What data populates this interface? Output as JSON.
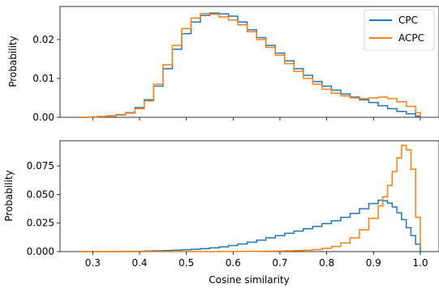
{
  "colors": {
    "series_1": "#1f77b4",
    "series_2": "#ff7f0e"
  },
  "chart_data": [
    {
      "type": "line",
      "drawstyle": "steps",
      "title": "",
      "xlabel": "",
      "ylabel": "Probability",
      "xlim": [
        0.23,
        1.04
      ],
      "ylim": [
        0,
        0.0285
      ],
      "xticks": [
        0.3,
        0.4,
        0.5,
        0.6,
        0.7,
        0.8,
        0.9,
        1.0
      ],
      "yticks": [
        0.0,
        0.01,
        0.02
      ],
      "ytick_labels": [
        "0.00",
        "0.01",
        "0.02"
      ],
      "xtick_labels_visible": false,
      "grid": false,
      "legend": {
        "placement": "top-right",
        "entries": [
          "CPC",
          "ACPC"
        ]
      },
      "x": [
        0.27,
        0.29,
        0.31,
        0.33,
        0.35,
        0.37,
        0.39,
        0.41,
        0.43,
        0.45,
        0.47,
        0.49,
        0.51,
        0.53,
        0.55,
        0.57,
        0.59,
        0.61,
        0.63,
        0.65,
        0.67,
        0.69,
        0.71,
        0.73,
        0.75,
        0.77,
        0.79,
        0.81,
        0.83,
        0.85,
        0.87,
        0.89,
        0.91,
        0.93,
        0.95,
        0.97,
        0.99,
        1.0
      ],
      "series": [
        {
          "name": "CPC",
          "values": [
            0.0,
            0.0001,
            0.0002,
            0.0004,
            0.0007,
            0.0012,
            0.0025,
            0.0045,
            0.008,
            0.0125,
            0.0175,
            0.0215,
            0.0245,
            0.0262,
            0.0268,
            0.0266,
            0.026,
            0.0245,
            0.0225,
            0.0205,
            0.0185,
            0.0165,
            0.0145,
            0.0125,
            0.0108,
            0.0092,
            0.008,
            0.007,
            0.006,
            0.0052,
            0.0045,
            0.0038,
            0.003,
            0.0022,
            0.0015,
            0.0009,
            0.0003,
            0.0
          ]
        },
        {
          "name": "ACPC",
          "values": [
            0.0,
            0.0001,
            0.0002,
            0.0003,
            0.0006,
            0.0011,
            0.0022,
            0.0042,
            0.0085,
            0.0135,
            0.0185,
            0.0228,
            0.0255,
            0.0267,
            0.0265,
            0.0258,
            0.025,
            0.0238,
            0.022,
            0.02,
            0.018,
            0.016,
            0.0138,
            0.0118,
            0.01,
            0.0085,
            0.0072,
            0.0062,
            0.0055,
            0.005,
            0.0048,
            0.005,
            0.0052,
            0.0048,
            0.004,
            0.0028,
            0.0012,
            0.0
          ]
        }
      ]
    },
    {
      "type": "line",
      "drawstyle": "steps",
      "title": "",
      "xlabel": "Cosine similarity",
      "ylabel": "Probability",
      "xlim": [
        0.23,
        1.04
      ],
      "ylim": [
        0,
        0.097
      ],
      "xticks": [
        0.3,
        0.4,
        0.5,
        0.6,
        0.7,
        0.8,
        0.9,
        1.0
      ],
      "xtick_labels": [
        "0.3",
        "0.4",
        "0.5",
        "0.6",
        "0.7",
        "0.8",
        "0.9",
        "1.0"
      ],
      "yticks": [
        0.0,
        0.025,
        0.05,
        0.075
      ],
      "ytick_labels": [
        "0.000",
        "0.025",
        "0.050",
        "0.075"
      ],
      "grid": false,
      "legend": null,
      "x": [
        0.27,
        0.29,
        0.31,
        0.33,
        0.35,
        0.37,
        0.39,
        0.41,
        0.43,
        0.45,
        0.47,
        0.49,
        0.51,
        0.53,
        0.55,
        0.57,
        0.59,
        0.61,
        0.63,
        0.65,
        0.67,
        0.69,
        0.71,
        0.73,
        0.75,
        0.77,
        0.79,
        0.81,
        0.83,
        0.85,
        0.87,
        0.89,
        0.91,
        0.92,
        0.93,
        0.94,
        0.95,
        0.96,
        0.97,
        0.98,
        0.99,
        1.0
      ],
      "series": [
        {
          "name": "CPC",
          "values": [
            0.0,
            0.0,
            0.0,
            0.0,
            0.0001,
            0.0002,
            0.0003,
            0.0005,
            0.0007,
            0.0009,
            0.0012,
            0.0016,
            0.002,
            0.0026,
            0.0033,
            0.0042,
            0.0053,
            0.0066,
            0.0082,
            0.01,
            0.012,
            0.014,
            0.016,
            0.018,
            0.02,
            0.022,
            0.0245,
            0.027,
            0.03,
            0.0335,
            0.0375,
            0.042,
            0.045,
            0.0445,
            0.0425,
            0.039,
            0.034,
            0.028,
            0.021,
            0.014,
            0.0065,
            0.0
          ]
        },
        {
          "name": "ACPC",
          "values": [
            0.0,
            0.0,
            0.0,
            0.0,
            0.0,
            0.0,
            0.0,
            0.0,
            0.0,
            0.0,
            0.0,
            0.0,
            0.0,
            0.0,
            0.0,
            0.0001,
            0.0001,
            0.0002,
            0.0002,
            0.0003,
            0.0004,
            0.0005,
            0.0007,
            0.0009,
            0.0012,
            0.0018,
            0.0028,
            0.0045,
            0.0075,
            0.012,
            0.019,
            0.029,
            0.04,
            0.048,
            0.058,
            0.07,
            0.082,
            0.093,
            0.089,
            0.072,
            0.03,
            0.004
          ]
        }
      ]
    }
  ]
}
